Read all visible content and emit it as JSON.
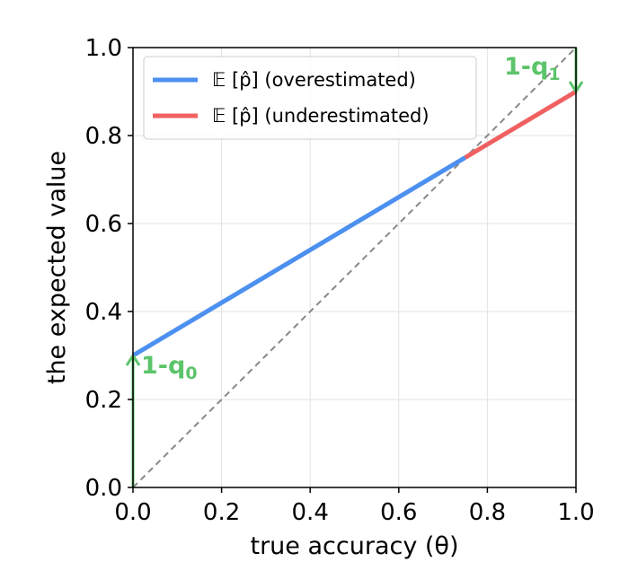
{
  "chart_data": {
    "type": "line",
    "xlabel": "true accuracy (θ)",
    "ylabel": "the expected value",
    "xlim": [
      0.0,
      1.0
    ],
    "ylim": [
      0.0,
      1.0
    ],
    "xticks": [
      "0.0",
      "0.2",
      "0.4",
      "0.6",
      "0.8",
      "1.0"
    ],
    "yticks": [
      "0.0",
      "0.2",
      "0.4",
      "0.6",
      "0.8",
      "1.0"
    ],
    "grid": true,
    "legend_position": "top-left",
    "series": [
      {
        "name": "𝔼 [p̂] (overestimated)",
        "color": "#4c90f0",
        "x": [
          0.0,
          0.75
        ],
        "y": [
          0.3,
          0.75
        ]
      },
      {
        "name": "𝔼 [p̂] (underestimated)",
        "color": "#f06060",
        "x": [
          0.75,
          1.0
        ],
        "y": [
          0.75,
          0.9
        ]
      }
    ],
    "reference_line": {
      "style": "dashed",
      "color": "#888888",
      "x": [
        0.0,
        1.0
      ],
      "y": [
        0.0,
        1.0
      ]
    },
    "annotations": [
      {
        "text": "1-q",
        "subscript": "0",
        "color": "#5cc46a",
        "arrow": {
          "x": 0.0,
          "from_y": 0.0,
          "to_y": 0.3
        }
      },
      {
        "text": "1-q",
        "subscript": "1",
        "color": "#5cc46a",
        "arrow": {
          "x": 1.0,
          "from_y": 1.0,
          "to_y": 0.9
        }
      }
    ]
  }
}
